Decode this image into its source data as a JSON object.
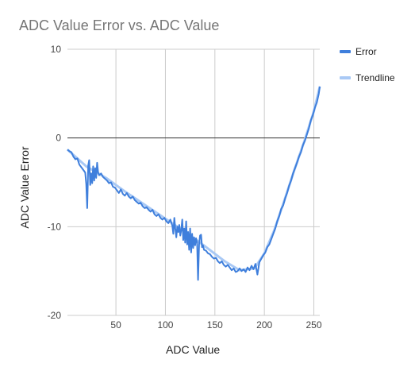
{
  "chart_data": {
    "type": "line",
    "title": "ADC Value Error vs. ADC Value",
    "xlabel": "ADC Value",
    "ylabel": "ADC Value Error",
    "xlim": [
      1,
      256
    ],
    "ylim": [
      -20,
      10
    ],
    "x_ticks": [
      50,
      100,
      150,
      200,
      250
    ],
    "y_ticks": [
      10,
      0,
      -10,
      -20
    ],
    "grid": true,
    "legend_position": "right",
    "series": [
      {
        "name": "Error",
        "color": "#3f7fdc",
        "points": [
          [
            1,
            -1.3
          ],
          [
            3,
            -1.5
          ],
          [
            5,
            -1.6
          ],
          [
            7,
            -2.1
          ],
          [
            9,
            -2.4
          ],
          [
            11,
            -2.3
          ],
          [
            13,
            -3.0
          ],
          [
            15,
            -3.3
          ],
          [
            17,
            -3.6
          ],
          [
            19,
            -3.9
          ],
          [
            20,
            -5.2
          ],
          [
            21,
            -7.9
          ],
          [
            22,
            -3.1
          ],
          [
            23,
            -2.5
          ],
          [
            24,
            -5.3
          ],
          [
            25,
            -4.0
          ],
          [
            26,
            -5.1
          ],
          [
            27,
            -3.2
          ],
          [
            28,
            -4.8
          ],
          [
            29,
            -3.4
          ],
          [
            30,
            -4.5
          ],
          [
            31,
            -2.8
          ],
          [
            32,
            -3.9
          ],
          [
            33,
            -4.2
          ],
          [
            35,
            -4.0
          ],
          [
            37,
            -4.4
          ],
          [
            39,
            -4.6
          ],
          [
            41,
            -4.8
          ],
          [
            43,
            -5.1
          ],
          [
            45,
            -5.0
          ],
          [
            47,
            -5.5
          ],
          [
            49,
            -5.6
          ],
          [
            51,
            -5.9
          ],
          [
            53,
            -6.2
          ],
          [
            55,
            -5.8
          ],
          [
            57,
            -6.3
          ],
          [
            59,
            -6.5
          ],
          [
            61,
            -6.2
          ],
          [
            63,
            -6.6
          ],
          [
            65,
            -6.8
          ],
          [
            67,
            -6.6
          ],
          [
            69,
            -7.0
          ],
          [
            71,
            -7.2
          ],
          [
            73,
            -7.4
          ],
          [
            75,
            -7.3
          ],
          [
            77,
            -7.7
          ],
          [
            79,
            -7.9
          ],
          [
            81,
            -7.8
          ],
          [
            83,
            -8.1
          ],
          [
            85,
            -8.3
          ],
          [
            87,
            -8.1
          ],
          [
            89,
            -8.6
          ],
          [
            91,
            -8.8
          ],
          [
            93,
            -8.6
          ],
          [
            95,
            -9.0
          ],
          [
            97,
            -9.2
          ],
          [
            99,
            -9.0
          ],
          [
            101,
            -9.4
          ],
          [
            103,
            -9.6
          ],
          [
            105,
            -9.2
          ],
          [
            107,
            -9.9
          ],
          [
            108,
            -10.8
          ],
          [
            109,
            -9.0
          ],
          [
            110,
            -10.2
          ],
          [
            111,
            -11.2
          ],
          [
            112,
            -10.0
          ],
          [
            113,
            -10.6
          ],
          [
            114,
            -9.8
          ],
          [
            115,
            -11.0
          ],
          [
            116,
            -10.4
          ],
          [
            117,
            -9.2
          ],
          [
            118,
            -11.5
          ],
          [
            119,
            -10.2
          ],
          [
            120,
            -11.8
          ],
          [
            121,
            -9.4
          ],
          [
            122,
            -12.0
          ],
          [
            123,
            -10.6
          ],
          [
            124,
            -12.6
          ],
          [
            125,
            -10.2
          ],
          [
            126,
            -12.9
          ],
          [
            127,
            -10.8
          ],
          [
            128,
            -12.4
          ],
          [
            129,
            -11.2
          ],
          [
            130,
            -12.1
          ],
          [
            131,
            -11.3
          ],
          [
            132,
            -11.8
          ],
          [
            133,
            -16.0
          ],
          [
            134,
            -12.0
          ],
          [
            135,
            -11.0
          ],
          [
            136,
            -10.9
          ],
          [
            137,
            -12.3
          ],
          [
            138,
            -12.1
          ],
          [
            139,
            -12.6
          ],
          [
            141,
            -12.7
          ],
          [
            143,
            -13.0
          ],
          [
            145,
            -13.1
          ],
          [
            147,
            -13.4
          ],
          [
            149,
            -13.6
          ],
          [
            151,
            -13.5
          ],
          [
            153,
            -13.9
          ],
          [
            155,
            -14.1
          ],
          [
            157,
            -13.9
          ],
          [
            159,
            -14.3
          ],
          [
            161,
            -14.5
          ],
          [
            163,
            -14.3
          ],
          [
            165,
            -14.6
          ],
          [
            167,
            -14.9
          ],
          [
            169,
            -14.7
          ],
          [
            171,
            -15.1
          ],
          [
            173,
            -15.0
          ],
          [
            175,
            -14.7
          ],
          [
            177,
            -15.0
          ],
          [
            179,
            -14.8
          ],
          [
            181,
            -15.1
          ],
          [
            183,
            -14.6
          ],
          [
            185,
            -14.9
          ],
          [
            187,
            -14.4
          ],
          [
            189,
            -14.8
          ],
          [
            191,
            -14.2
          ],
          [
            193,
            -15.4
          ],
          [
            195,
            -14.0
          ],
          [
            197,
            -13.6
          ],
          [
            199,
            -13.2
          ],
          [
            201,
            -12.9
          ],
          [
            203,
            -12.3
          ],
          [
            205,
            -12.0
          ],
          [
            207,
            -11.4
          ],
          [
            209,
            -10.8
          ],
          [
            211,
            -10.2
          ],
          [
            213,
            -9.4
          ],
          [
            215,
            -8.8
          ],
          [
            217,
            -8.0
          ],
          [
            219,
            -7.6
          ],
          [
            221,
            -6.8
          ],
          [
            223,
            -6.2
          ],
          [
            225,
            -5.4
          ],
          [
            227,
            -4.8
          ],
          [
            229,
            -4.0
          ],
          [
            231,
            -3.4
          ],
          [
            233,
            -2.8
          ],
          [
            235,
            -2.1
          ],
          [
            237,
            -1.6
          ],
          [
            239,
            -0.8
          ],
          [
            241,
            -0.3
          ],
          [
            243,
            0.4
          ],
          [
            245,
            1.1
          ],
          [
            247,
            2.0
          ],
          [
            249,
            2.6
          ],
          [
            251,
            3.4
          ],
          [
            253,
            4.0
          ],
          [
            255,
            5.0
          ],
          [
            256,
            5.8
          ]
        ]
      },
      {
        "name": "Trendline",
        "color": "#a9c9f5",
        "points": [
          [
            1,
            -1.3
          ],
          [
            20,
            -3.2
          ],
          [
            40,
            -4.5
          ],
          [
            60,
            -6.1
          ],
          [
            80,
            -7.6
          ],
          [
            100,
            -9.1
          ],
          [
            120,
            -10.6
          ],
          [
            140,
            -12.2
          ],
          [
            160,
            -13.9
          ],
          [
            175,
            -14.9
          ],
          [
            190,
            -14.7
          ],
          [
            200,
            -13.0
          ],
          [
            210,
            -10.4
          ],
          [
            220,
            -7.1
          ],
          [
            230,
            -3.7
          ],
          [
            240,
            -0.5
          ],
          [
            250,
            3.0
          ],
          [
            256,
            5.8
          ]
        ]
      }
    ]
  }
}
